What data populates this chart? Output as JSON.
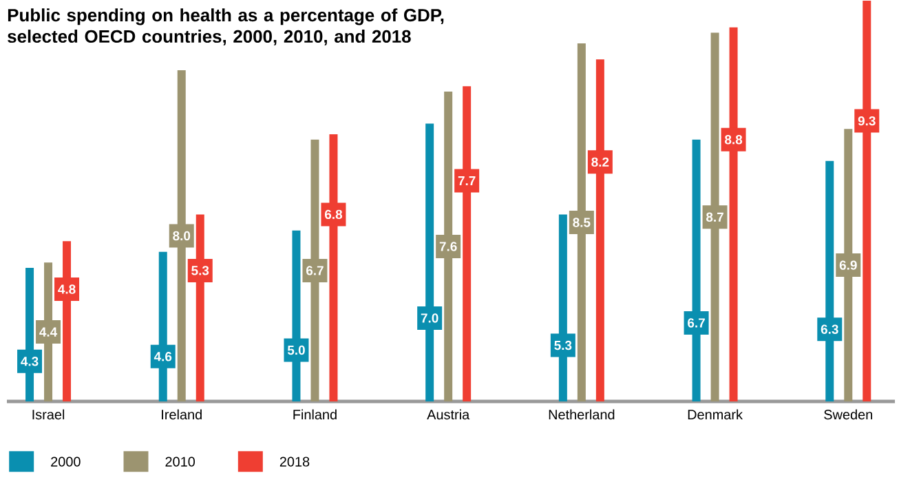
{
  "chart_data": {
    "type": "bar",
    "title": "Public spending on health as a percentage of GDP,\nselected OECD countries, 2000, 2010, and 2018",
    "categories": [
      "Israel",
      "Ireland",
      "Finland",
      "Austria",
      "Netherland",
      "Denmark",
      "Sweden"
    ],
    "series": [
      {
        "name": "2000",
        "color": "#0a8fb0",
        "values": [
          4.3,
          4.6,
          5.0,
          7.0,
          5.3,
          6.7,
          6.3
        ],
        "value_labels": [
          "4.3",
          "4.6",
          "5.0",
          "7.0",
          "5.3",
          "6.7",
          "6.3"
        ]
      },
      {
        "name": "2010",
        "color": "#9c9470",
        "values": [
          4.4,
          8.0,
          6.7,
          7.6,
          8.5,
          8.7,
          6.9
        ],
        "value_labels": [
          "4.4",
          "8.0",
          "6.7",
          "7.6",
          "8.5",
          "8.7",
          "6.9"
        ]
      },
      {
        "name": "2018",
        "color": "#ef3e32",
        "values": [
          4.8,
          5.3,
          6.8,
          7.7,
          8.2,
          8.8,
          9.3
        ],
        "value_labels": [
          "4.8",
          "5.3",
          "6.8",
          "7.7",
          "8.2",
          "8.8",
          "9.3"
        ]
      }
    ],
    "ylim": [
      1.8,
      9.3
    ],
    "tick_labels": "x",
    "legend": "bottom"
  }
}
